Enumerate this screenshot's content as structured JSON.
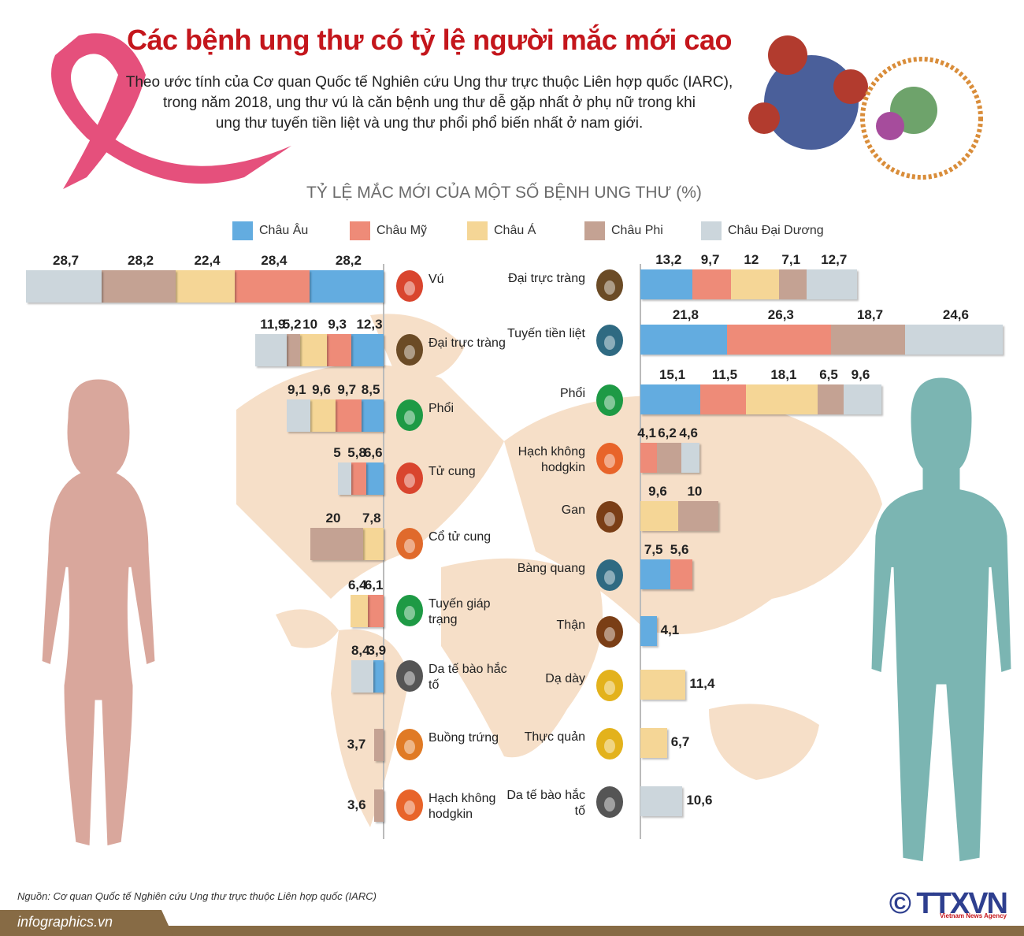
{
  "header": {
    "title": "Các bệnh ung thư có tỷ lệ người mắc mới cao",
    "intro_lines": [
      "Theo ước tính của Cơ quan Quốc tế Nghiên cứu Ung thư trực thuộc Liên hợp quốc (IARC),",
      "trong năm 2018, ung thư vú là căn bệnh ung thư dễ gặp nhất ở phụ nữ trong khi",
      "ung thư tuyến tiền liệt và ung thư phổi phổ biến nhất ở nam giới."
    ]
  },
  "chart_data": {
    "type": "bar",
    "orientation": "horizontal-stacked",
    "title": "TỶ LỆ MẮC MỚI CỦA MỘT SỐ BỆNH UNG THƯ (%)",
    "legend_position": "top",
    "series": [
      {
        "name": "Châu Âu",
        "color": "#63ace0"
      },
      {
        "name": "Châu Mỹ",
        "color": "#ee8b78"
      },
      {
        "name": "Châu Á",
        "color": "#f5d696"
      },
      {
        "name": "Châu Phi",
        "color": "#c4a293"
      },
      {
        "name": "Châu Đại Dương",
        "color": "#ccd6dc"
      }
    ],
    "panels": [
      {
        "side": "left",
        "gender": "female",
        "rows": [
          {
            "label": "Vú",
            "icon": "breast-icon",
            "icon_color": "#d9452e",
            "values": [
              28.2,
              28.4,
              22.4,
              28.2,
              28.7
            ],
            "value_labels": [
              "28,2",
              "28,4",
              "22,4",
              "28,2",
              "28,7"
            ]
          },
          {
            "label": "Đại trực tràng",
            "icon": "colon-icon",
            "icon_color": "#6b4b26",
            "values": [
              12.3,
              9.3,
              10,
              5.2,
              11.9
            ],
            "value_labels": [
              "12,3",
              "9,3",
              "10",
              "5,2",
              "11,9"
            ]
          },
          {
            "label": "Phổi",
            "icon": "lungs-icon",
            "icon_color": "#1e9a45",
            "values": [
              8.5,
              9.7,
              9.6,
              null,
              9.1
            ],
            "value_labels": [
              "8,5",
              "9,7",
              "9,6",
              "",
              "9,1"
            ]
          },
          {
            "label": "Tử cung",
            "icon": "uterus-icon",
            "icon_color": "#d9452e",
            "values": [
              6.6,
              5.8,
              null,
              null,
              5
            ],
            "value_labels": [
              "6,6",
              "5,8",
              "",
              "",
              "5"
            ]
          },
          {
            "label": "Cổ tử cung",
            "icon": "cervix-icon",
            "icon_color": "#e06a2c",
            "values": [
              null,
              null,
              7.8,
              20,
              null
            ],
            "value_labels": [
              "",
              "",
              "7,8",
              "20",
              ""
            ]
          },
          {
            "label": "Tuyến giáp trạng",
            "icon": "thyroid-icon",
            "icon_color": "#1e9a45",
            "values": [
              null,
              6.1,
              6.4,
              null,
              null
            ],
            "value_labels": [
              "",
              "6,1",
              "6,4",
              "",
              ""
            ]
          },
          {
            "label": "Da tế bào hắc tố",
            "icon": "skin-icon",
            "icon_color": "#555555",
            "values": [
              3.9,
              null,
              null,
              null,
              8.4
            ],
            "value_labels": [
              "3,9",
              "",
              "",
              "",
              "8,4"
            ]
          },
          {
            "label": "Buồng trứng",
            "icon": "ovary-icon",
            "icon_color": "#e07a25",
            "values": [
              null,
              null,
              null,
              3.7,
              null
            ],
            "value_labels": [
              "",
              "",
              "",
              "3,7",
              ""
            ]
          },
          {
            "label": "Hạch không hodgkin",
            "icon": "lymph-node-icon",
            "icon_color": "#e8642a",
            "values": [
              null,
              null,
              null,
              3.6,
              null
            ],
            "value_labels": [
              "",
              "",
              "",
              "3,6",
              ""
            ]
          }
        ]
      },
      {
        "side": "right",
        "gender": "male",
        "rows": [
          {
            "label": "Đại trực tràng",
            "icon": "colon-icon",
            "icon_color": "#6b4b26",
            "values": [
              13.2,
              9.7,
              12,
              7.1,
              12.7
            ],
            "value_labels": [
              "13,2",
              "9,7",
              "12",
              "7,1",
              "12,7"
            ]
          },
          {
            "label": "Tuyến tiền liệt",
            "icon": "prostate-icon",
            "icon_color": "#2f6a82",
            "values": [
              21.8,
              26.3,
              null,
              18.7,
              24.6
            ],
            "value_labels": [
              "21,8",
              "26,3",
              "",
              "18,7",
              "24,6"
            ]
          },
          {
            "label": "Phổi",
            "icon": "lungs-icon",
            "icon_color": "#1e9a45",
            "values": [
              15.1,
              11.5,
              18.1,
              6.5,
              9.6
            ],
            "value_labels": [
              "15,1",
              "11,5",
              "18,1",
              "6,5",
              "9,6"
            ]
          },
          {
            "label": "Hạch không hodgkin",
            "icon": "lymph-node-icon",
            "icon_color": "#e8642a",
            "values": [
              null,
              4.1,
              null,
              6.2,
              4.6
            ],
            "value_labels": [
              "",
              "4,1",
              "",
              "6,2",
              "4,6"
            ]
          },
          {
            "label": "Gan",
            "icon": "liver-icon",
            "icon_color": "#7a3e16",
            "values": [
              null,
              null,
              9.6,
              10,
              null
            ],
            "value_labels": [
              "",
              "",
              "9,6",
              "10",
              ""
            ]
          },
          {
            "label": "Bàng quang",
            "icon": "bladder-icon",
            "icon_color": "#2f6a82",
            "values": [
              7.5,
              5.6,
              null,
              null,
              null
            ],
            "value_labels": [
              "7,5",
              "5,6",
              "",
              "",
              ""
            ]
          },
          {
            "label": "Thận",
            "icon": "kidney-icon",
            "icon_color": "#7a3e16",
            "values": [
              4.1,
              null,
              null,
              null,
              null
            ],
            "value_labels": [
              "4,1",
              "",
              "",
              "",
              ""
            ]
          },
          {
            "label": "Dạ dày",
            "icon": "stomach-icon",
            "icon_color": "#e3b21c",
            "values": [
              null,
              null,
              11.4,
              null,
              null
            ],
            "value_labels": [
              "",
              "",
              "11,4",
              "",
              ""
            ]
          },
          {
            "label": "Thực quản",
            "icon": "esophagus-icon",
            "icon_color": "#e3b21c",
            "values": [
              null,
              null,
              6.7,
              null,
              null
            ],
            "value_labels": [
              "",
              "",
              "6,7",
              "",
              ""
            ]
          },
          {
            "label": "Da tế bào hắc tố",
            "icon": "skin-icon",
            "icon_color": "#555555",
            "values": [
              null,
              null,
              null,
              null,
              10.6
            ],
            "value_labels": [
              "",
              "",
              "",
              "",
              "10,6"
            ]
          }
        ]
      }
    ]
  },
  "footer": {
    "source": "Nguồn: Cơ quan Quốc tế Nghiên cứu Ung thư trực thuộc Liên hợp quốc (IARC)",
    "site": "infographics.vn",
    "logo": "© TTXVN",
    "logo_sub": "Vietnam News Agency"
  },
  "colors": {
    "title": "#c4161c",
    "female_body": "#d9a79c",
    "male_body": "#7bb5b2",
    "map": "#f6dfc8",
    "footer": "#876b45"
  }
}
